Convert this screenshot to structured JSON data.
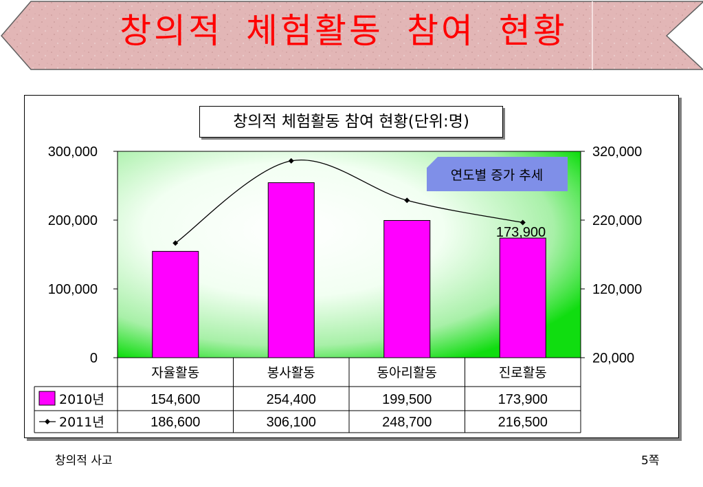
{
  "slide": {
    "title": "창의적 체험활동 참여 현황",
    "footer_left": "창의적 사고",
    "page_label": "5쪽"
  },
  "colors": {
    "title": "#ff0000",
    "bar_2010": "#ff00ff",
    "line_2011": "#000000",
    "plot_green": "#00e000",
    "callout_bg": "#7f8fe8",
    "banner_bg": "#e2b6b6"
  },
  "chart_data": {
    "type": "bar",
    "title": "창의적 체험활동 참여 현황(단위:명)",
    "categories": [
      "자율활동",
      "봉사활동",
      "동아리활동",
      "진로활동"
    ],
    "series": [
      {
        "name": "2010년",
        "type": "bar",
        "axis": "left",
        "values": [
          154600,
          254400,
          199500,
          173900
        ]
      },
      {
        "name": "2011년",
        "type": "line",
        "axis": "right",
        "values": [
          186600,
          306100,
          248700,
          216500
        ]
      }
    ],
    "ylim": [
      0,
      300000
    ],
    "y_ticks": [
      "300,000",
      "200,000",
      "100,000",
      "0"
    ],
    "y2lim": [
      20000,
      320000
    ],
    "y2_ticks": [
      "320,000",
      "220,000",
      "120,000",
      "20,000"
    ],
    "data_label": "173,900",
    "annotation": "연도별 증가 추세",
    "data_table": true,
    "legend": "data-table"
  }
}
